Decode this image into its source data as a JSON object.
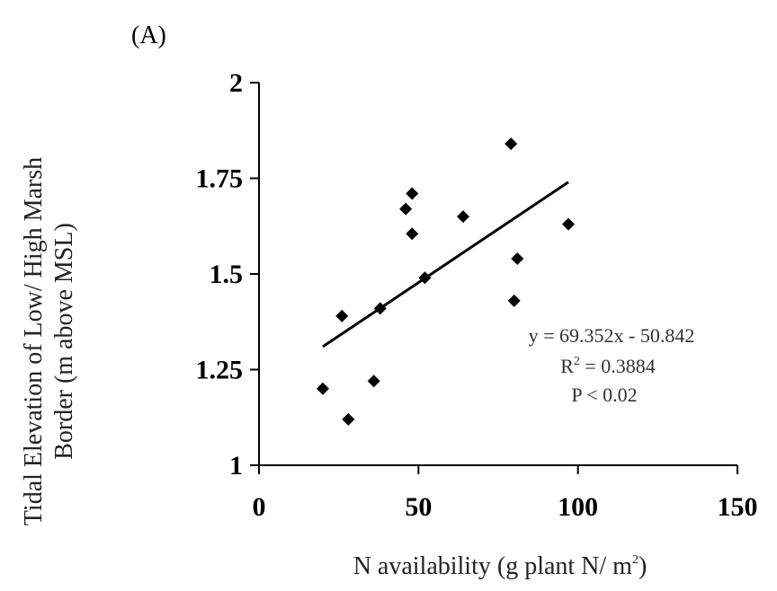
{
  "chart_data": {
    "type": "scatter",
    "panel_label": "(A)",
    "xlabel": "N availability (g plant N/ m",
    "xlabel_sup": "2",
    "xlabel_end": ")",
    "ylabel_line1": "Tidal Elevation of Low/ High Marsh",
    "ylabel_line2": "Border (m above MSL)",
    "xlim": [
      0,
      150
    ],
    "ylim": [
      1,
      2
    ],
    "x_ticks": [
      0,
      50,
      100,
      150
    ],
    "y_ticks": [
      1,
      1.25,
      1.5,
      1.75,
      2
    ],
    "x_tick_labels": [
      "0",
      "50",
      "100",
      "150"
    ],
    "y_tick_labels": [
      "1",
      "1.25",
      "1.5",
      "1.75",
      "2"
    ],
    "grid": false,
    "series": [
      {
        "x": [
          20,
          26,
          28,
          36,
          38,
          46,
          48,
          48,
          52,
          64,
          79,
          80,
          81,
          97
        ],
        "y": [
          1.2,
          1.39,
          1.12,
          1.22,
          1.41,
          1.67,
          1.605,
          1.71,
          1.49,
          1.65,
          1.84,
          1.43,
          1.54,
          1.63
        ]
      }
    ],
    "trendline": {
      "x": [
        20,
        97
      ],
      "y": [
        1.31,
        1.74
      ]
    },
    "annotations": {
      "equation": "y = 69.352x - 50.842",
      "r2_prefix": "R",
      "r2_sup": "2",
      "r2_value": " = 0.3884",
      "p_value": "P  < 0.02"
    }
  }
}
